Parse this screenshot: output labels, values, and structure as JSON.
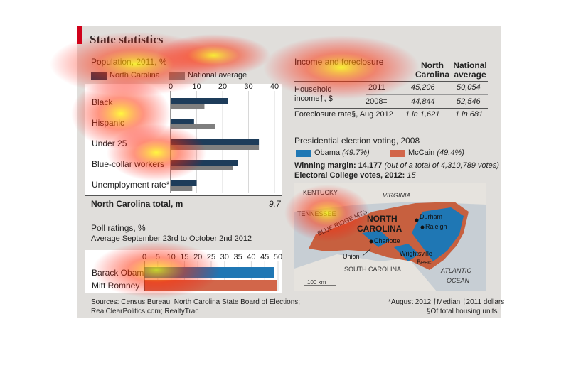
{
  "title": "State statistics",
  "colors": {
    "nc": "#1d3c5a",
    "national": "#7f7f7f",
    "obama": "#1f77b4",
    "mccain": "#d2664a",
    "accent": "#d0021b"
  },
  "population": {
    "title": "Population, 2011, %",
    "legend_nc": "North Carolina",
    "legend_national": "National average",
    "total_label": "North Carolina total, m",
    "total_value": "9.7"
  },
  "income": {
    "title": "Income and foreclosure",
    "col_nc": "North Carolina",
    "col_national": "National average",
    "household_label_1": "Household",
    "household_label_2": "income†, $",
    "rows": [
      {
        "year": "2011",
        "nc": "45,206",
        "national": "50,054"
      },
      {
        "year": "2008‡",
        "nc": "44,844",
        "national": "52,546"
      }
    ],
    "foreclosure_label": "Foreclosure rate§, Aug 2012",
    "foreclosure_nc": "1 in 1,621",
    "foreclosure_national": "1 in 681"
  },
  "election": {
    "title": "Presidential election voting, 2008",
    "obama_label": "Obama",
    "obama_pct": "(49.7%)",
    "mccain_label": "McCain",
    "mccain_pct": "(49.4%)",
    "margin_label": "Winning margin: 14,177",
    "margin_detail": "(out of a total of 4,310,789 votes)",
    "ec_label": "Electoral College votes, 2012:",
    "ec_value": "15"
  },
  "map": {
    "kentucky": "KENTUCKY",
    "virginia": "VIRGINIA",
    "tennessee": "TENNESSEE",
    "blue_ridge": "BLUE RIDGE MTS.",
    "nc_line1": "NORTH",
    "nc_line2": "CAROLINA",
    "durham": "Durham",
    "raleigh": "Raleigh",
    "charlotte": "Charlotte",
    "union": "Union",
    "wrightsville": "Wrightsville",
    "beach": "Beach",
    "sc": "SOUTH CAROLINA",
    "atlantic": "ATLANTIC",
    "ocean": "OCEAN",
    "scale": "100 km"
  },
  "poll": {
    "title": "Poll ratings, %",
    "subtitle": "Average September 23rd to October 2nd 2012"
  },
  "sources": {
    "line1": "Sources: Census Bureau; North Carolina State Board of Elections;",
    "line2": "RealClearPolitics.com; RealtyTrac"
  },
  "footnotes": {
    "line1": "*August 2012  †Median  ‡2011 dollars",
    "line2": "§Of total housing units"
  },
  "chart_data": [
    {
      "type": "bar",
      "title": "Population, 2011, %",
      "categories": [
        "Black",
        "Hispanic",
        "Under 25",
        "Blue-collar workers",
        "Unemployment rate*"
      ],
      "series": [
        {
          "name": "North Carolina",
          "values": [
            22,
            9,
            34,
            26,
            10
          ]
        },
        {
          "name": "National average",
          "values": [
            13,
            17,
            34,
            24,
            8.3
          ]
        }
      ],
      "xlim": [
        0,
        40
      ],
      "ticks": [
        0,
        10,
        20,
        30,
        40
      ],
      "orientation": "horizontal"
    },
    {
      "type": "bar",
      "title": "Poll ratings, %",
      "categories": [
        "Barack Obama",
        "Mitt Romney"
      ],
      "values": [
        48.5,
        49.5
      ],
      "xlim": [
        0,
        50
      ],
      "ticks": [
        0,
        5,
        10,
        15,
        20,
        25,
        30,
        35,
        40,
        45,
        50
      ],
      "orientation": "horizontal"
    }
  ]
}
